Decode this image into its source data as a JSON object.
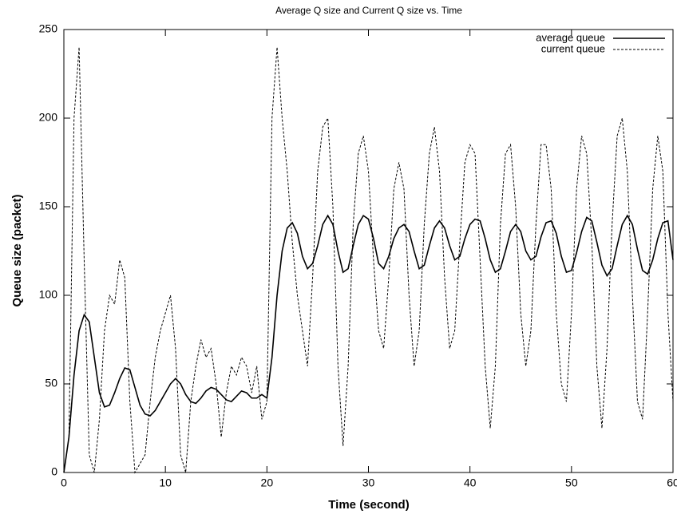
{
  "chart_data": {
    "type": "line",
    "title": "Average Q size and Current Q size vs. Time",
    "x_label": "Time (second)",
    "y_label": "Queue size (packet)",
    "xlim": [
      0,
      60
    ],
    "ylim": [
      0,
      250
    ],
    "xticks": [
      0,
      10,
      20,
      30,
      40,
      50,
      60
    ],
    "yticks": [
      0,
      50,
      100,
      150,
      200,
      250
    ],
    "grid": false,
    "legend": "top-right",
    "x": [
      0,
      0.5,
      1,
      1.5,
      2,
      2.5,
      3,
      3.5,
      4,
      4.5,
      5,
      5.5,
      6,
      6.5,
      7,
      7.5,
      8,
      8.5,
      9,
      9.5,
      10,
      10.5,
      11,
      11.5,
      12,
      12.5,
      13,
      13.5,
      14,
      14.5,
      15,
      15.5,
      16,
      16.5,
      17,
      17.5,
      18,
      18.5,
      19,
      19.5,
      20,
      20.5,
      21,
      21.5,
      22,
      22.5,
      23,
      23.5,
      24,
      24.5,
      25,
      25.5,
      26,
      26.5,
      27,
      27.5,
      28,
      28.5,
      29,
      29.5,
      30,
      30.5,
      31,
      31.5,
      32,
      32.5,
      33,
      33.5,
      34,
      34.5,
      35,
      35.5,
      36,
      36.5,
      37,
      37.5,
      38,
      38.5,
      39,
      39.5,
      40,
      40.5,
      41,
      41.5,
      42,
      42.5,
      43,
      43.5,
      44,
      44.5,
      45,
      45.5,
      46,
      46.5,
      47,
      47.5,
      48,
      48.5,
      49,
      49.5,
      50,
      50.5,
      51,
      51.5,
      52,
      52.5,
      53,
      53.5,
      54,
      54.5,
      55,
      55.5,
      56,
      56.5,
      57,
      57.5,
      58,
      58.5,
      59,
      59.5,
      60
    ],
    "series": [
      {
        "name": "average queue",
        "color": "#000000",
        "dash": "solid",
        "values": [
          0,
          20,
          55,
          80,
          89,
          85,
          65,
          45,
          37,
          38,
          45,
          53,
          59,
          58,
          48,
          38,
          33,
          32,
          35,
          40,
          45,
          50,
          53,
          50,
          44,
          40,
          39,
          42,
          46,
          48,
          47,
          44,
          41,
          40,
          43,
          46,
          45,
          42,
          42,
          44,
          42,
          65,
          100,
          125,
          138,
          141,
          135,
          122,
          115,
          118,
          128,
          140,
          145,
          140,
          125,
          113,
          115,
          128,
          140,
          145,
          143,
          132,
          118,
          115,
          122,
          132,
          138,
          140,
          136,
          125,
          115,
          117,
          128,
          138,
          142,
          138,
          128,
          120,
          122,
          132,
          140,
          143,
          142,
          132,
          120,
          113,
          115,
          125,
          136,
          140,
          136,
          125,
          120,
          122,
          133,
          141,
          142,
          135,
          122,
          113,
          114,
          124,
          136,
          144,
          142,
          130,
          117,
          111,
          115,
          128,
          140,
          145,
          140,
          126,
          114,
          112,
          120,
          132,
          141,
          142,
          120
        ]
      },
      {
        "name": "current queue",
        "color": "#000000",
        "dash": "dashed",
        "values": [
          0,
          20,
          200,
          240,
          120,
          10,
          0,
          30,
          80,
          100,
          95,
          120,
          110,
          40,
          0,
          5,
          10,
          40,
          65,
          80,
          90,
          100,
          70,
          10,
          0,
          40,
          60,
          75,
          65,
          70,
          50,
          20,
          45,
          60,
          55,
          65,
          60,
          45,
          60,
          30,
          40,
          200,
          240,
          200,
          170,
          130,
          100,
          80,
          60,
          110,
          170,
          195,
          200,
          150,
          60,
          15,
          60,
          140,
          180,
          190,
          170,
          120,
          80,
          70,
          110,
          160,
          175,
          160,
          100,
          60,
          80,
          140,
          180,
          195,
          170,
          110,
          70,
          80,
          130,
          175,
          185,
          180,
          120,
          60,
          25,
          60,
          140,
          180,
          185,
          150,
          90,
          60,
          80,
          140,
          185,
          185,
          160,
          90,
          50,
          40,
          90,
          160,
          190,
          180,
          130,
          60,
          25,
          70,
          140,
          190,
          200,
          170,
          100,
          40,
          30,
          90,
          160,
          190,
          170,
          90,
          40
        ]
      }
    ]
  }
}
